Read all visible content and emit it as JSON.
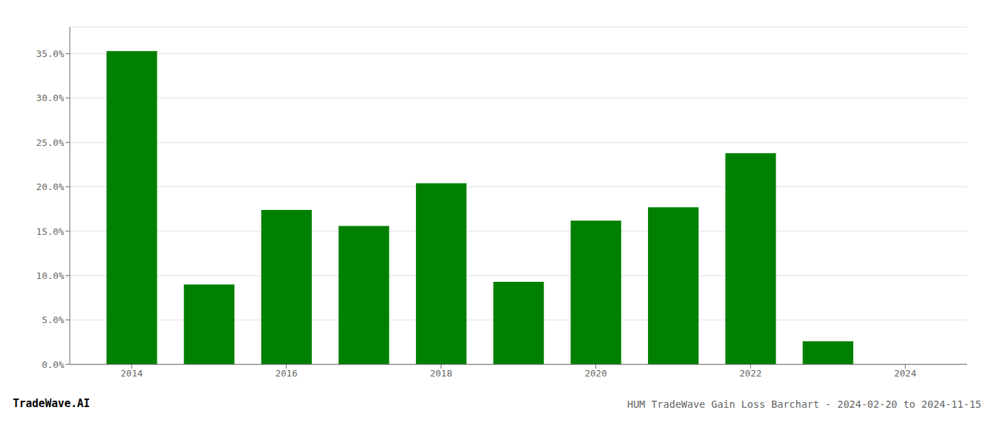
{
  "chart_data": {
    "type": "bar",
    "title": "HUM TradeWave Gain Loss Barchart - 2024-02-20 to 2024-11-15",
    "annotations": [
      "TradeWave.AI"
    ],
    "x": [
      2014,
      2015,
      2016,
      2017,
      2018,
      2019,
      2020,
      2021,
      2022,
      2023
    ],
    "values": [
      0.353,
      0.09,
      0.174,
      0.156,
      0.204,
      0.093,
      0.162,
      0.177,
      0.238,
      0.026
    ],
    "color": "#008000",
    "xlim": [
      2013.2,
      2024.8
    ],
    "xticks": [
      2014,
      2016,
      2018,
      2020,
      2022,
      2024
    ],
    "ylim": [
      0.0,
      0.38
    ],
    "yticks": [
      {
        "value": 0.0,
        "label": "0.0%"
      },
      {
        "value": 0.05,
        "label": "5.0%"
      },
      {
        "value": 0.1,
        "label": "10.0%"
      },
      {
        "value": 0.15,
        "label": "15.0%"
      },
      {
        "value": 0.2,
        "label": "20.0%"
      },
      {
        "value": 0.25,
        "label": "25.0%"
      },
      {
        "value": 0.3,
        "label": "30.0%"
      },
      {
        "value": 0.35,
        "label": "35.0%"
      }
    ],
    "grid": true
  }
}
